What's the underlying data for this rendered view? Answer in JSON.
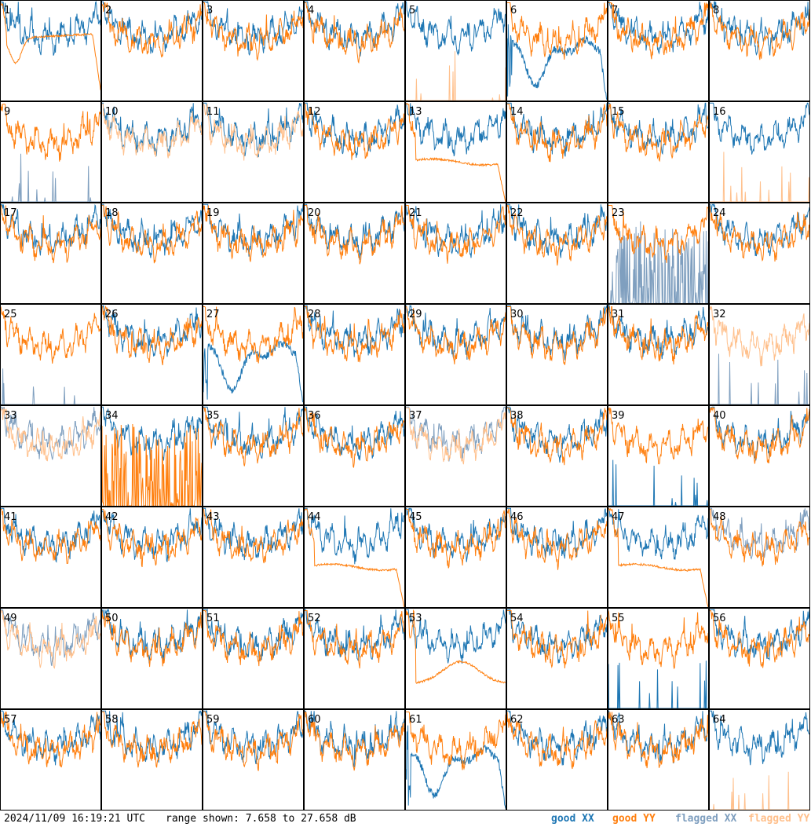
{
  "chart_data": {
    "type": "line",
    "layout": "8x8 grid of small-multiple spectrum panels",
    "timestamp": "2024/11/09 16:19:21 UTC",
    "range_label": "range shown: 7.658 to 27.658 dB",
    "ylim": [
      7.658,
      27.658
    ],
    "unit": "dB",
    "legend_position": "bottom-right",
    "grid": false,
    "legend": [
      {
        "label_a": "good ",
        "label_b": "XX",
        "color": "#1f77b4"
      },
      {
        "label_a": "good ",
        "label_b": "YY",
        "color": "#ff7f0e"
      },
      {
        "label_a": "flagged ",
        "label_b": "XX",
        "color": "#7f9fbf"
      },
      {
        "label_a": "flagged ",
        "label_b": "YY",
        "color": "#ffc08c"
      }
    ],
    "panel_labels": [
      "1",
      "2",
      "3",
      "4",
      "5",
      "6",
      "7",
      "8",
      "9",
      "10",
      "11",
      "12",
      "13",
      "14",
      "15",
      "16",
      "17",
      "18",
      "19",
      "20",
      "21",
      "22",
      "23",
      "24",
      "25",
      "26",
      "27",
      "28",
      "29",
      "30",
      "31",
      "32",
      "33",
      "34",
      "35",
      "36",
      "37",
      "38",
      "39",
      "40",
      "41",
      "42",
      "43",
      "44",
      "45",
      "46",
      "47",
      "48",
      "49",
      "50",
      "51",
      "52",
      "53",
      "54",
      "55",
      "56",
      "57",
      "58",
      "59",
      "60",
      "61",
      "62",
      "63",
      "64"
    ],
    "series_colors": {
      "good_xx": "#1f77b4",
      "good_yy": "#ff7f0e",
      "flagged_xx": "#7f9fbf",
      "flagged_yy": "#ffc08c"
    },
    "panels": [
      {
        "xx": "g",
        "yy": "g",
        "xx_shape": "normal",
        "yy_shape": "smooth_drop"
      },
      {
        "xx": "g",
        "yy": "g",
        "xx_shape": "normal",
        "yy_shape": "normal"
      },
      {
        "xx": "g",
        "yy": "g",
        "xx_shape": "normal",
        "yy_shape": "normal"
      },
      {
        "xx": "g",
        "yy": "g",
        "xx_shape": "normal",
        "yy_shape": "normal"
      },
      {
        "xx": "g",
        "yy": "f",
        "xx_shape": "normal",
        "yy_shape": "spikes"
      },
      {
        "xx": "g",
        "yy": "g",
        "xx_shape": "dip",
        "yy_shape": "normal"
      },
      {
        "xx": "g",
        "yy": "g",
        "xx_shape": "normal",
        "yy_shape": "normal"
      },
      {
        "xx": "g",
        "yy": "g",
        "xx_shape": "normal",
        "yy_shape": "normal"
      },
      {
        "xx": "f",
        "yy": "g",
        "xx_shape": "spikes",
        "yy_shape": "normal"
      },
      {
        "xx": "g",
        "yy": "f",
        "xx_shape": "normal",
        "yy_shape": "normal"
      },
      {
        "xx": "g",
        "yy": "f",
        "xx_shape": "normal",
        "yy_shape": "normal"
      },
      {
        "xx": "g",
        "yy": "g",
        "xx_shape": "normal",
        "yy_shape": "normal"
      },
      {
        "xx": "g",
        "yy": "g",
        "xx_shape": "normal",
        "yy_shape": "smooth_flat"
      },
      {
        "xx": "g",
        "yy": "g",
        "xx_shape": "normal",
        "yy_shape": "normal"
      },
      {
        "xx": "g",
        "yy": "g",
        "xx_shape": "normal",
        "yy_shape": "normal"
      },
      {
        "xx": "g",
        "yy": "f",
        "xx_shape": "normal",
        "yy_shape": "spikes"
      },
      {
        "xx": "g",
        "yy": "g",
        "xx_shape": "normal",
        "yy_shape": "normal"
      },
      {
        "xx": "g",
        "yy": "g",
        "xx_shape": "normal",
        "yy_shape": "normal"
      },
      {
        "xx": "g",
        "yy": "g",
        "xx_shape": "normal",
        "yy_shape": "normal"
      },
      {
        "xx": "g",
        "yy": "g",
        "xx_shape": "normal",
        "yy_shape": "normal"
      },
      {
        "xx": "g",
        "yy": "g",
        "xx_shape": "normal",
        "yy_shape": "normal"
      },
      {
        "xx": "g",
        "yy": "g",
        "xx_shape": "normal",
        "yy_shape": "normal"
      },
      {
        "xx": "f",
        "yy": "g",
        "xx_shape": "noise",
        "yy_shape": "normal"
      },
      {
        "xx": "g",
        "yy": "g",
        "xx_shape": "normal",
        "yy_shape": "normal"
      },
      {
        "xx": "f",
        "yy": "g",
        "xx_shape": "spikes",
        "yy_shape": "normal"
      },
      {
        "xx": "g",
        "yy": "g",
        "xx_shape": "normal",
        "yy_shape": "normal"
      },
      {
        "xx": "g",
        "yy": "g",
        "xx_shape": "dip",
        "yy_shape": "normal"
      },
      {
        "xx": "g",
        "yy": "g",
        "xx_shape": "normal",
        "yy_shape": "normal"
      },
      {
        "xx": "g",
        "yy": "g",
        "xx_shape": "normal",
        "yy_shape": "normal"
      },
      {
        "xx": "g",
        "yy": "g",
        "xx_shape": "normal",
        "yy_shape": "normal"
      },
      {
        "xx": "g",
        "yy": "g",
        "xx_shape": "normal",
        "yy_shape": "normal"
      },
      {
        "xx": "f",
        "yy": "f",
        "xx_shape": "spikes",
        "yy_shape": "normal"
      },
      {
        "xx": "f",
        "yy": "f",
        "xx_shape": "normal",
        "yy_shape": "normal"
      },
      {
        "xx": "g",
        "yy": "g",
        "xx_shape": "normal",
        "yy_shape": "noise"
      },
      {
        "xx": "g",
        "yy": "g",
        "xx_shape": "normal",
        "yy_shape": "normal"
      },
      {
        "xx": "g",
        "yy": "g",
        "xx_shape": "normal",
        "yy_shape": "normal"
      },
      {
        "xx": "f",
        "yy": "f",
        "xx_shape": "normal",
        "yy_shape": "normal"
      },
      {
        "xx": "g",
        "yy": "g",
        "xx_shape": "normal",
        "yy_shape": "normal"
      },
      {
        "xx": "g",
        "yy": "g",
        "xx_shape": "spikes",
        "yy_shape": "normal"
      },
      {
        "xx": "g",
        "yy": "g",
        "xx_shape": "normal",
        "yy_shape": "normal"
      },
      {
        "xx": "g",
        "yy": "g",
        "xx_shape": "normal",
        "yy_shape": "normal"
      },
      {
        "xx": "g",
        "yy": "g",
        "xx_shape": "normal",
        "yy_shape": "normal"
      },
      {
        "xx": "g",
        "yy": "g",
        "xx_shape": "normal",
        "yy_shape": "normal"
      },
      {
        "xx": "g",
        "yy": "g",
        "xx_shape": "normal",
        "yy_shape": "smooth_flat"
      },
      {
        "xx": "g",
        "yy": "g",
        "xx_shape": "normal",
        "yy_shape": "normal"
      },
      {
        "xx": "g",
        "yy": "g",
        "xx_shape": "normal",
        "yy_shape": "normal"
      },
      {
        "xx": "g",
        "yy": "g",
        "xx_shape": "normal",
        "yy_shape": "smooth_flat"
      },
      {
        "xx": "f",
        "yy": "g",
        "xx_shape": "normal",
        "yy_shape": "normal"
      },
      {
        "xx": "f",
        "yy": "f",
        "xx_shape": "normal",
        "yy_shape": "normal"
      },
      {
        "xx": "g",
        "yy": "g",
        "xx_shape": "normal",
        "yy_shape": "normal"
      },
      {
        "xx": "g",
        "yy": "g",
        "xx_shape": "normal",
        "yy_shape": "normal"
      },
      {
        "xx": "g",
        "yy": "g",
        "xx_shape": "normal",
        "yy_shape": "normal"
      },
      {
        "xx": "g",
        "yy": "g",
        "xx_shape": "normal",
        "yy_shape": "smooth_bump"
      },
      {
        "xx": "g",
        "yy": "g",
        "xx_shape": "normal",
        "yy_shape": "normal"
      },
      {
        "xx": "g",
        "yy": "g",
        "xx_shape": "spikes",
        "yy_shape": "normal"
      },
      {
        "xx": "g",
        "yy": "g",
        "xx_shape": "normal",
        "yy_shape": "normal"
      },
      {
        "xx": "g",
        "yy": "g",
        "xx_shape": "normal",
        "yy_shape": "normal"
      },
      {
        "xx": "g",
        "yy": "g",
        "xx_shape": "normal",
        "yy_shape": "normal"
      },
      {
        "xx": "g",
        "yy": "g",
        "xx_shape": "normal",
        "yy_shape": "normal"
      },
      {
        "xx": "g",
        "yy": "g",
        "xx_shape": "normal",
        "yy_shape": "normal"
      },
      {
        "xx": "g",
        "yy": "g",
        "xx_shape": "dip",
        "yy_shape": "normal"
      },
      {
        "xx": "g",
        "yy": "g",
        "xx_shape": "normal",
        "yy_shape": "normal"
      },
      {
        "xx": "g",
        "yy": "g",
        "xx_shape": "normal",
        "yy_shape": "normal"
      },
      {
        "xx": "g",
        "yy": "f",
        "xx_shape": "normal",
        "yy_shape": "spikes"
      }
    ]
  }
}
